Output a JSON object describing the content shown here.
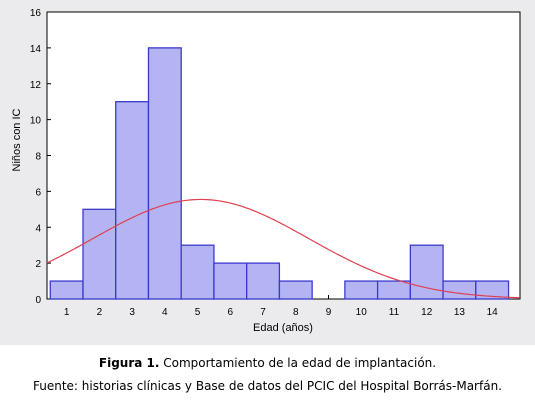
{
  "chart_data": {
    "type": "bar",
    "subtype": "histogram-with-normal-curve",
    "x": [
      1,
      2,
      3,
      4,
      5,
      6,
      7,
      8,
      9,
      10,
      11,
      12,
      13,
      14
    ],
    "values": [
      1,
      5,
      11,
      14,
      3,
      2,
      2,
      1,
      0,
      1,
      1,
      3,
      1,
      1
    ],
    "xlabel": "Edad (años)",
    "ylabel": "Niños con IC",
    "xlim": [
      0.4,
      14.85
    ],
    "ylim": [
      0,
      16
    ],
    "yticks": [
      0,
      2,
      4,
      6,
      8,
      10,
      12,
      14,
      16
    ],
    "xticks": [
      1,
      2,
      3,
      4,
      5,
      6,
      7,
      8,
      9,
      10,
      11,
      12,
      13,
      14
    ],
    "normal_curve": {
      "mean": 5.1,
      "sd": 3.3,
      "peak": 5.55
    },
    "grid": false,
    "legend": "none",
    "colors": {
      "bar_fill": "#b4b4f3",
      "bar_stroke": "#3a3acc",
      "curve": "#e04050",
      "plot_background": "#ffffff",
      "outer_background": "#ebeaec"
    }
  },
  "caption": {
    "figure_label": "Figura 1.",
    "figure_text": " Comportamiento de la edad de implantación.",
    "source": "Fuente: historias clínicas y Base de datos del PCIC del Hospital Borrás-Marfán."
  }
}
